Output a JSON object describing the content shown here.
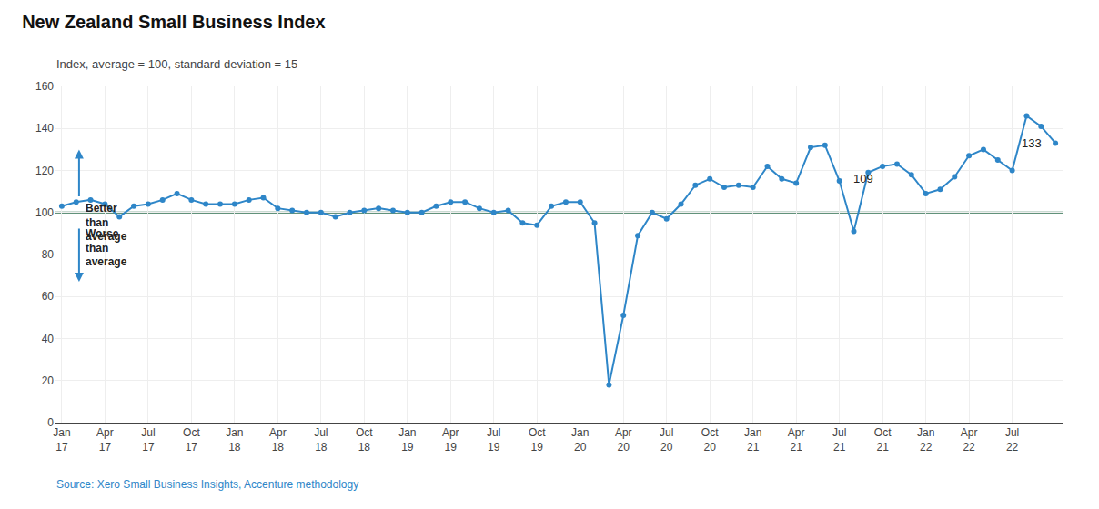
{
  "chart_data": {
    "type": "line",
    "title": "New Zealand Small Business Index",
    "subtitle": "Index, average = 100, standard deviation = 15",
    "source": "Source: Xero Small Business Insights, Accenture methodology",
    "color": "#2E86C8",
    "marker": "circle",
    "grid": true,
    "ylim": [
      0,
      160
    ],
    "yticks": [
      0,
      20,
      40,
      60,
      80,
      100,
      120,
      140,
      160
    ],
    "reference_line": {
      "value": 100,
      "color": "#2d6e4e"
    },
    "categories": [
      "Jan\n17",
      null,
      null,
      "Apr\n17",
      null,
      null,
      "Jul\n17",
      null,
      null,
      "Oct\n17",
      null,
      null,
      "Jan\n18",
      null,
      null,
      "Apr\n18",
      null,
      null,
      "Jul\n18",
      null,
      null,
      "Oct\n18",
      null,
      null,
      "Jan\n19",
      null,
      null,
      "Apr\n19",
      null,
      null,
      "Jul\n19",
      null,
      null,
      "Oct\n19",
      null,
      null,
      "Jan\n20",
      null,
      null,
      "Apr\n20",
      null,
      null,
      "Jul\n20",
      null,
      null,
      "Oct\n20",
      null,
      null,
      "Jan\n21",
      null,
      null,
      "Apr\n21",
      null,
      null,
      "Jul\n21",
      null,
      null,
      "Oct\n21",
      null,
      null,
      "Jan\n22",
      null,
      null,
      "Apr\n22",
      null,
      null,
      "Jul\n22",
      null,
      null,
      null
    ],
    "values": [
      103,
      105,
      106,
      104,
      98,
      103,
      104,
      106,
      109,
      106,
      104,
      104,
      104,
      106,
      107,
      102,
      101,
      100,
      100,
      98,
      100,
      101,
      102,
      101,
      100,
      100,
      103,
      105,
      105,
      102,
      100,
      101,
      95,
      94,
      103,
      105,
      105,
      95,
      18,
      51,
      89,
      100,
      97,
      104,
      113,
      116,
      112,
      113,
      112,
      122,
      116,
      114,
      131,
      132,
      115,
      91,
      119,
      122,
      123,
      118,
      109,
      111,
      117,
      127,
      130,
      125,
      120,
      146,
      141,
      133
    ],
    "annotations": [
      {
        "text": "Better\nthan\naverage",
        "x": 1.5,
        "y": 106,
        "anchor": "top left",
        "arrow": {
          "x": 1.2,
          "from": 107,
          "to": 130
        }
      },
      {
        "text": "Worse\nthan\naverage",
        "x": 1.5,
        "y": 94,
        "anchor": "top left",
        "arrow": {
          "x": 1.2,
          "from": 93,
          "to": 67
        }
      },
      {
        "text": "109",
        "x": 56.5,
        "y": 112,
        "anchor": "bottom right"
      },
      {
        "text": "133",
        "x": 66.5,
        "y": 133,
        "anchor": "middle left"
      }
    ]
  }
}
